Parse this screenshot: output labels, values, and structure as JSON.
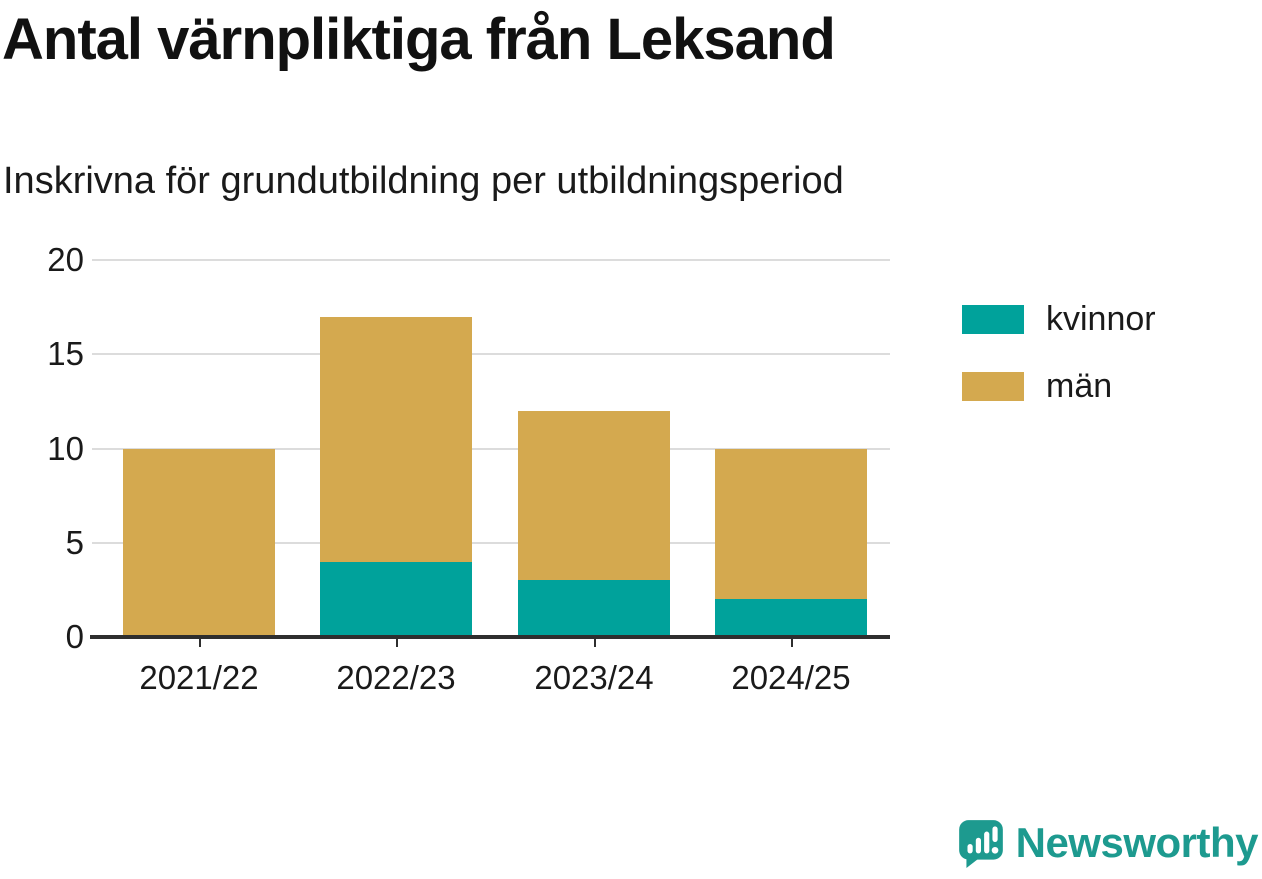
{
  "header": {
    "title": "Antal värnpliktiga från Leksand",
    "subtitle": "Inskrivna för grundutbildning per utbildningsperiod"
  },
  "chart_data": {
    "type": "bar",
    "stacked": true,
    "title": "Antal värnpliktiga från Leksand",
    "subtitle": "Inskrivna för grundutbildning per utbildningsperiod",
    "categories": [
      "2021/22",
      "2022/23",
      "2023/24",
      "2024/25"
    ],
    "series": [
      {
        "name": "kvinnor",
        "color": "#00a29b",
        "values": [
          0,
          4,
          3,
          2
        ]
      },
      {
        "name": "män",
        "color": "#d4a94f",
        "values": [
          10,
          13,
          9,
          8
        ]
      }
    ],
    "totals": [
      10,
      17,
      12,
      10
    ],
    "ylim": [
      0,
      20
    ],
    "yticks": [
      0,
      5,
      10,
      15,
      20
    ],
    "grid": true,
    "legend_position": "right",
    "axis_color": "#2e2e2e",
    "gridline_color": "#dcdcdc"
  },
  "branding": {
    "logo_text": "Newsworthy",
    "logo_color": "#1d9a8f",
    "logo_icon": "newsworthy-chart-bubble-icon"
  }
}
